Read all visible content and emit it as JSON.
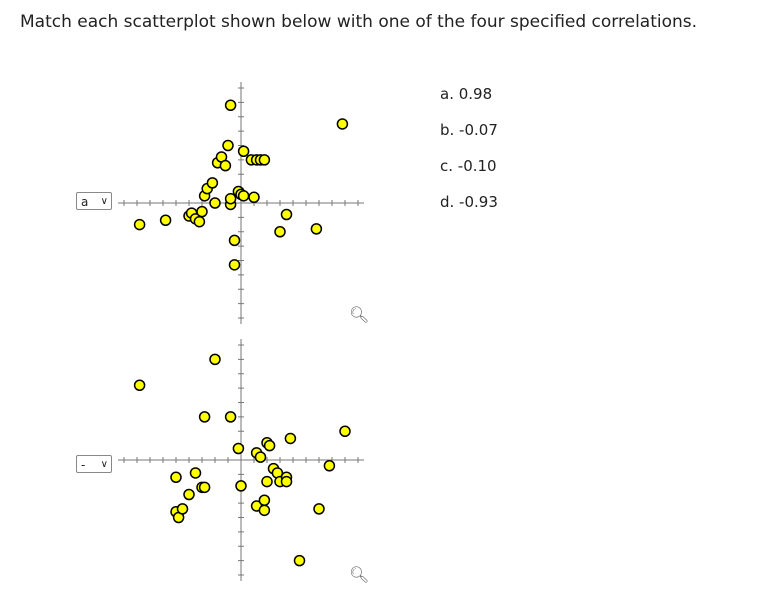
{
  "question": "Match each scatterplot shown below with one of the four specified correlations.",
  "options": [
    "a. 0.98",
    "b. -0.07",
    "c. -0.10",
    "d. -0.93"
  ],
  "selects": [
    {
      "value": "a"
    },
    {
      "value": "-"
    }
  ],
  "colors": {
    "point_fill": "#ffff00",
    "point_stroke": "#000000",
    "axis": "#777777"
  },
  "icons": {
    "caret": "chevron-down-icon",
    "zoom": "magnify-icon"
  },
  "chart_data": [
    {
      "type": "scatter",
      "title": "",
      "xlabel": "",
      "ylabel": "",
      "xlim": [
        -9,
        9
      ],
      "ylim": [
        -8,
        8
      ],
      "grid": false,
      "x": [
        -7.8,
        -5.8,
        -4.0,
        -3.8,
        -3.5,
        -3.2,
        -3.0,
        -2.8,
        -2.6,
        -2.2,
        -2.0,
        -1.8,
        -1.5,
        -1.2,
        -1.0,
        -0.8,
        -0.8,
        -0.5,
        -0.5,
        -0.2,
        0.0,
        0.2,
        0.2,
        0.8,
        1.0,
        1.2,
        1.5,
        1.8,
        3.0,
        3.5,
        5.8,
        7.8,
        -0.8
      ],
      "y": [
        -1.5,
        -1.2,
        -0.9,
        -0.7,
        -1.1,
        -1.3,
        -0.6,
        0.5,
        1.0,
        1.4,
        0.0,
        2.8,
        3.2,
        2.6,
        4.0,
        -0.1,
        6.8,
        -2.6,
        -4.3,
        0.8,
        0.6,
        0.5,
        3.6,
        3.0,
        0.4,
        3.0,
        3.0,
        3.0,
        -2.0,
        -0.8,
        -1.8,
        5.5,
        0.3
      ]
    },
    {
      "type": "scatter",
      "title": "",
      "xlabel": "",
      "ylabel": "",
      "xlim": [
        -9,
        9
      ],
      "ylim": [
        -8,
        8
      ],
      "grid": false,
      "x": [
        -7.8,
        -5.0,
        -5.0,
        -4.8,
        -4.5,
        -4.0,
        -3.5,
        -3.0,
        -2.8,
        -2.8,
        -2.0,
        -0.8,
        -0.2,
        0.0,
        1.2,
        1.2,
        1.5,
        1.8,
        1.8,
        2.0,
        2.0,
        2.2,
        2.5,
        2.8,
        3.0,
        3.5,
        3.5,
        3.8,
        4.5,
        6.0,
        6.8,
        8.0
      ],
      "y": [
        5.2,
        -1.2,
        -3.6,
        -4.0,
        -3.4,
        -2.4,
        -0.9,
        -1.9,
        -1.9,
        3.0,
        7.0,
        3.0,
        0.8,
        -1.8,
        0.5,
        -3.2,
        0.2,
        -3.5,
        -2.8,
        1.2,
        -1.5,
        1.0,
        -0.6,
        -0.9,
        -1.5,
        -1.2,
        -1.5,
        1.5,
        -7.0,
        -3.4,
        -0.4,
        2.0
      ]
    }
  ]
}
